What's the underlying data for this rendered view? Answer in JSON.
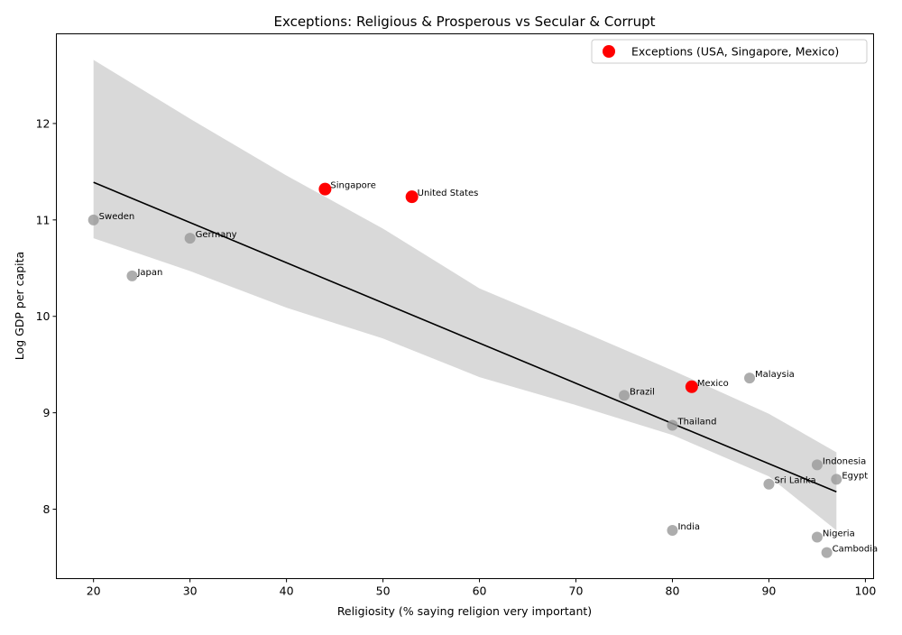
{
  "chart_data": {
    "type": "scatter",
    "title": "Exceptions: Religious & Prosperous vs Secular & Corrupt",
    "xlabel": "Religiosity (% saying religion very important)",
    "ylabel": "Log GDP per capita",
    "xlim": [
      16.15,
      100.85
    ],
    "ylim": [
      7.28,
      12.93
    ],
    "xticks": [
      20,
      30,
      40,
      50,
      60,
      70,
      80,
      90,
      100
    ],
    "yticks": [
      8,
      9,
      10,
      11,
      12
    ],
    "grid": false,
    "legend": {
      "position": "top-right",
      "entries": [
        "Exceptions (USA, Singapore, Mexico)"
      ]
    },
    "colors": {
      "regular": "#999999",
      "exception": "#ff0000",
      "line": "#000000",
      "band": "#d9d9d9"
    },
    "points": [
      {
        "label": "Sweden",
        "x": 20,
        "y": 11.0,
        "exception": false
      },
      {
        "label": "Germany",
        "x": 30,
        "y": 10.81,
        "exception": false
      },
      {
        "label": "Japan",
        "x": 24,
        "y": 10.42,
        "exception": false
      },
      {
        "label": "Singapore",
        "x": 44,
        "y": 11.32,
        "exception": true
      },
      {
        "label": "United States",
        "x": 53,
        "y": 11.24,
        "exception": true
      },
      {
        "label": "Brazil",
        "x": 75,
        "y": 9.18,
        "exception": false
      },
      {
        "label": "Mexico",
        "x": 82,
        "y": 9.27,
        "exception": true
      },
      {
        "label": "Malaysia",
        "x": 88,
        "y": 9.36,
        "exception": false
      },
      {
        "label": "Thailand",
        "x": 80,
        "y": 8.87,
        "exception": false
      },
      {
        "label": "Indonesia",
        "x": 95,
        "y": 8.46,
        "exception": false
      },
      {
        "label": "Egypt",
        "x": 97,
        "y": 8.31,
        "exception": false
      },
      {
        "label": "Sri Lanka",
        "x": 90,
        "y": 8.26,
        "exception": false
      },
      {
        "label": "India",
        "x": 80,
        "y": 7.78,
        "exception": false
      },
      {
        "label": "Nigeria",
        "x": 95,
        "y": 7.71,
        "exception": false
      },
      {
        "label": "Cambodia",
        "x": 96,
        "y": 7.55,
        "exception": false
      }
    ],
    "regression": {
      "x": [
        20,
        97
      ],
      "y": [
        11.39,
        8.18
      ],
      "ci_x": [
        20,
        30,
        40,
        50,
        60,
        70,
        80,
        90,
        97
      ],
      "ci_upper": [
        12.66,
        12.05,
        11.46,
        10.91,
        10.29,
        9.87,
        9.44,
        8.99,
        8.59
      ],
      "ci_lower": [
        10.81,
        10.47,
        10.09,
        9.77,
        9.37,
        9.08,
        8.77,
        8.34,
        7.78
      ]
    }
  }
}
